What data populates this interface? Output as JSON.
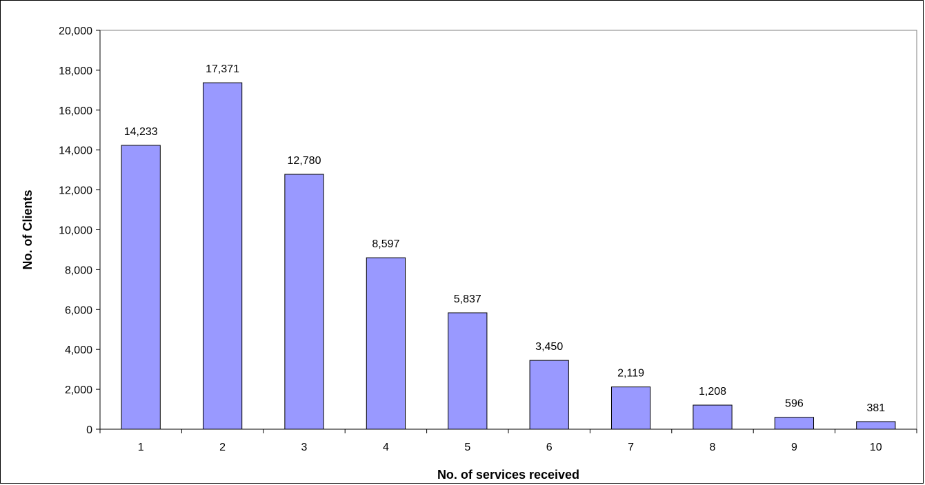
{
  "chart_data": {
    "type": "bar",
    "title": "",
    "xlabel": "No. of services received",
    "ylabel": "No. of Clients",
    "categories": [
      "1",
      "2",
      "3",
      "4",
      "5",
      "6",
      "7",
      "8",
      "9",
      "10"
    ],
    "values": [
      14233,
      17371,
      12780,
      8597,
      5837,
      3450,
      2119,
      1208,
      596,
      381
    ],
    "value_labels": [
      "14,233",
      "17,371",
      "12,780",
      "8,597",
      "5,837",
      "3,450",
      "2,119",
      "1,208",
      "596",
      "381"
    ],
    "ylim": [
      0,
      20000
    ],
    "yticks": [
      0,
      2000,
      4000,
      6000,
      8000,
      10000,
      12000,
      14000,
      16000,
      18000,
      20000
    ],
    "ytick_labels": [
      "0",
      "2,000",
      "4,000",
      "6,000",
      "8,000",
      "10,000",
      "12,000",
      "14,000",
      "16,000",
      "18,000",
      "20,000"
    ],
    "grid": false,
    "legend": "none",
    "colors": {
      "bar_fill": "#9999ff",
      "bar_stroke": "#000000"
    }
  }
}
